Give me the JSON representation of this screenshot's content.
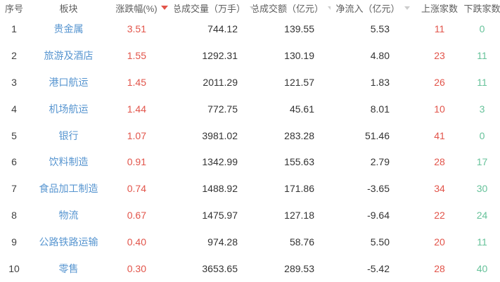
{
  "colors": {
    "up_red": "#e2544a",
    "down_green": "#66c29a",
    "sector_blue": "#5795d0",
    "header_text": "#5e5e5e",
    "body_text": "#333333",
    "sort_active": "#e2544a",
    "sort_inactive": "#cccccc"
  },
  "table": {
    "columns": [
      {
        "label": "序号",
        "sort": "none"
      },
      {
        "label": "板块",
        "sort": "none"
      },
      {
        "label": "涨跌幅(%)",
        "sort": "desc-active"
      },
      {
        "label": "总成交量（万手）",
        "sort": "inactive"
      },
      {
        "label": "总成交额（亿元）",
        "sort": "inactive"
      },
      {
        "label": "净流入（亿元）",
        "sort": "inactive"
      },
      {
        "label": "上涨家数",
        "sort": "none"
      },
      {
        "label": "下跌家数",
        "sort": "none"
      }
    ],
    "rows": [
      {
        "rank": "1",
        "sector": "贵金属",
        "change": "3.51",
        "volume": "744.12",
        "turnover": "139.55",
        "net_inflow": "5.53",
        "gainers": "11",
        "losers": "0"
      },
      {
        "rank": "2",
        "sector": "旅游及酒店",
        "change": "1.55",
        "volume": "1292.31",
        "turnover": "130.19",
        "net_inflow": "4.80",
        "gainers": "23",
        "losers": "11"
      },
      {
        "rank": "3",
        "sector": "港口航运",
        "change": "1.45",
        "volume": "2011.29",
        "turnover": "121.57",
        "net_inflow": "1.83",
        "gainers": "26",
        "losers": "11"
      },
      {
        "rank": "4",
        "sector": "机场航运",
        "change": "1.44",
        "volume": "772.75",
        "turnover": "45.61",
        "net_inflow": "8.01",
        "gainers": "10",
        "losers": "3"
      },
      {
        "rank": "5",
        "sector": "银行",
        "change": "1.07",
        "volume": "3981.02",
        "turnover": "283.28",
        "net_inflow": "51.46",
        "gainers": "41",
        "losers": "0"
      },
      {
        "rank": "6",
        "sector": "饮料制造",
        "change": "0.91",
        "volume": "1342.99",
        "turnover": "155.63",
        "net_inflow": "2.79",
        "gainers": "28",
        "losers": "17"
      },
      {
        "rank": "7",
        "sector": "食品加工制造",
        "change": "0.74",
        "volume": "1488.92",
        "turnover": "171.86",
        "net_inflow": "-3.65",
        "gainers": "34",
        "losers": "30"
      },
      {
        "rank": "8",
        "sector": "物流",
        "change": "0.67",
        "volume": "1475.97",
        "turnover": "127.18",
        "net_inflow": "-9.64",
        "gainers": "22",
        "losers": "24"
      },
      {
        "rank": "9",
        "sector": "公路铁路运输",
        "change": "0.40",
        "volume": "974.28",
        "turnover": "58.76",
        "net_inflow": "5.50",
        "gainers": "20",
        "losers": "11"
      },
      {
        "rank": "10",
        "sector": "零售",
        "change": "0.30",
        "volume": "3653.65",
        "turnover": "289.53",
        "net_inflow": "-5.42",
        "gainers": "28",
        "losers": "40"
      }
    ]
  }
}
